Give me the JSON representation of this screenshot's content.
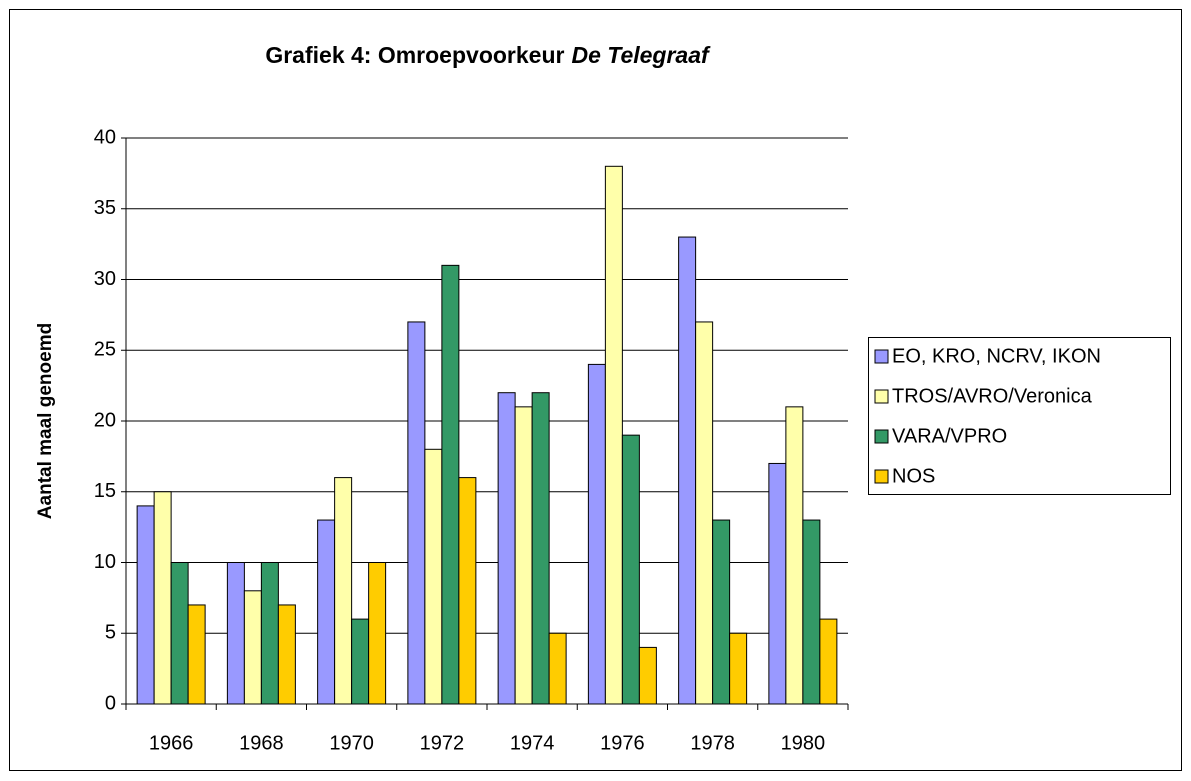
{
  "chart_data": {
    "type": "bar",
    "title": [
      "Grafiek 4: Omroepvoorkeur",
      "De Telegraaf"
    ],
    "y_label": "Aantal maal genoemd",
    "categories": [
      "1966",
      "1968",
      "1970",
      "1972",
      "1974",
      "1976",
      "1978",
      "1980"
    ],
    "series": [
      {
        "name": "EO, KRO, NCRV, IKON",
        "color": "#9999ff",
        "values": [
          14,
          10,
          13,
          27,
          22,
          24,
          33,
          17
        ]
      },
      {
        "name": "TROS/AVRO/Veronica",
        "color": "#ffffaa",
        "values": [
          15,
          8,
          16,
          18,
          21,
          38,
          27,
          21
        ]
      },
      {
        "name": "VARA/VPRO",
        "color": "#339966",
        "values": [
          10,
          10,
          6,
          31,
          22,
          19,
          13,
          13
        ]
      },
      {
        "name": "NOS",
        "color": "#ffcc00",
        "values": [
          7,
          7,
          10,
          16,
          5,
          4,
          5,
          6
        ]
      }
    ],
    "ylim": [
      0,
      40
    ],
    "yticks": [
      0,
      5,
      10,
      15,
      20,
      25,
      30,
      35,
      40
    ],
    "grid": true,
    "legend": "right"
  }
}
